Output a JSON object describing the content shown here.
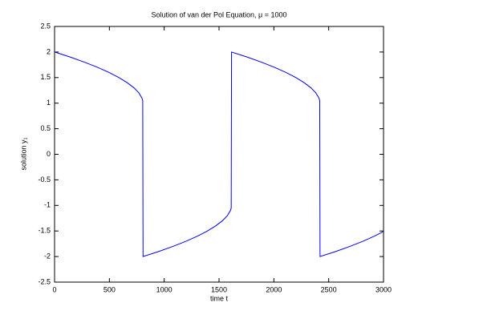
{
  "chart_data": {
    "type": "line",
    "title": "Solution of van der Pol Equation, μ = 1000",
    "xlabel": "time t",
    "ylabel": "solution y₁",
    "xlim": [
      0,
      3000
    ],
    "ylim": [
      -2.5,
      2.5
    ],
    "xticks": [
      0,
      500,
      1000,
      1500,
      2000,
      2500,
      3000
    ],
    "yticks": [
      -2.5,
      -2,
      -1.5,
      -1,
      -0.5,
      0,
      0.5,
      1,
      1.5,
      2,
      2.5
    ],
    "grid": false,
    "x": [
      0,
      144,
      275,
      393,
      497,
      587,
      663,
      724,
      769,
      797,
      804,
      807,
      951,
      1082,
      1200,
      1304,
      1394,
      1470,
      1531,
      1576,
      1604,
      1611,
      1614,
      1758,
      1889,
      2007,
      2111,
      2201,
      2277,
      2338,
      2383,
      2411,
      2418,
      2421,
      2565,
      2696,
      2814,
      2918,
      3000
    ],
    "series": [
      {
        "color": "#0000ff",
        "values": [
          2,
          1.9,
          1.8,
          1.7,
          1.6,
          1.5,
          1.4,
          1.3,
          1.2,
          1.1,
          1.05,
          -2,
          -1.9,
          -1.8,
          -1.7,
          -1.6,
          -1.5,
          -1.4,
          -1.3,
          -1.2,
          -1.1,
          -1.05,
          2,
          1.9,
          1.8,
          1.7,
          1.6,
          1.5,
          1.4,
          1.3,
          1.2,
          1.1,
          1.05,
          -2,
          -1.9,
          -1.8,
          -1.7,
          -1.6,
          -1.51
        ]
      }
    ]
  }
}
